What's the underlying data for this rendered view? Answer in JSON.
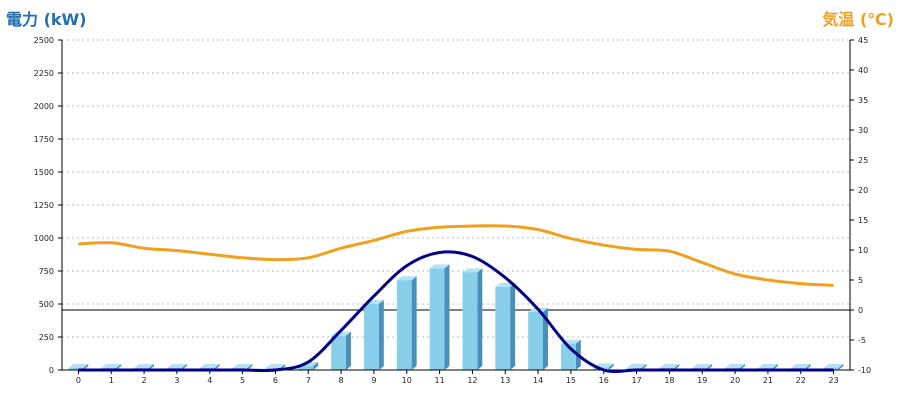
{
  "chart_data": {
    "type": "bar",
    "ylabel": "電力 (kW)",
    "y2label": "気温 (℃)",
    "categories": [
      "0",
      "1",
      "2",
      "3",
      "4",
      "5",
      "6",
      "7",
      "8",
      "9",
      "10",
      "11",
      "12",
      "13",
      "14",
      "15",
      "16",
      "17",
      "18",
      "19",
      "20",
      "21",
      "22",
      "23"
    ],
    "ylim": [
      0,
      2500
    ],
    "yticks": [
      0,
      250,
      500,
      750,
      1000,
      1250,
      1500,
      1750,
      2000,
      2250,
      2500
    ],
    "y2lim": [
      -10,
      45
    ],
    "y2ticks": [
      -10,
      -5,
      0,
      5,
      10,
      15,
      20,
      25,
      30,
      35,
      40,
      45
    ],
    "grid": true,
    "series": [
      {
        "kind": "bar",
        "axis": "left",
        "color": "#87ceeb",
        "values": [
          0,
          0,
          0,
          0,
          0,
          0,
          0,
          30,
          260,
          500,
          680,
          770,
          740,
          630,
          440,
          200,
          20,
          0,
          0,
          0,
          0,
          0,
          0,
          0
        ]
      },
      {
        "kind": "line",
        "axis": "left",
        "color": "#000080",
        "values": [
          0,
          0,
          0,
          0,
          0,
          0,
          0,
          60,
          300,
          560,
          790,
          890,
          860,
          700,
          460,
          160,
          0,
          0,
          0,
          0,
          0,
          0,
          0,
          0
        ]
      },
      {
        "kind": "line",
        "axis": "right",
        "color": "#f0a020",
        "values": [
          11,
          11.2,
          10.3,
          9.9,
          9.3,
          8.7,
          8.4,
          8.7,
          10.3,
          11.6,
          13.1,
          13.8,
          14,
          14,
          13.4,
          11.9,
          10.8,
          10.1,
          9.8,
          7.9,
          6,
          5,
          4.4,
          4.1
        ]
      }
    ]
  }
}
